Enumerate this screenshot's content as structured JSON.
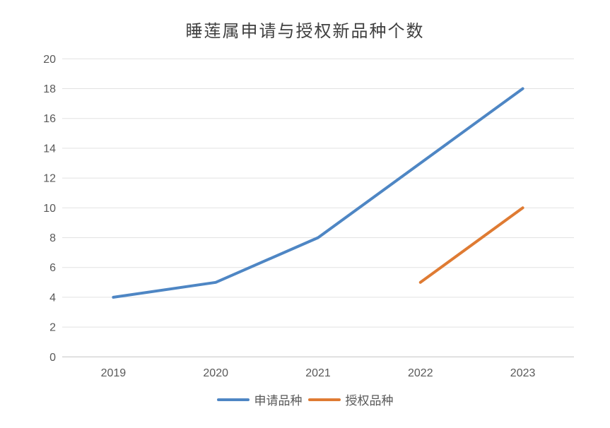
{
  "chart_data": {
    "type": "line",
    "title": "睡莲属申请与授权新品种个数",
    "categories": [
      "2019",
      "2020",
      "2021",
      "2022",
      "2023"
    ],
    "series": [
      {
        "name": "申请品种",
        "color": "#4e86c4",
        "values": [
          4,
          5,
          8,
          13,
          18
        ]
      },
      {
        "name": "授权品种",
        "color": "#df7b33",
        "values": [
          null,
          null,
          null,
          5,
          10
        ]
      }
    ],
    "xlabel": "",
    "ylabel": "",
    "ylim": [
      0,
      20
    ],
    "ytick_step": 2,
    "grid": true,
    "legend_position": "bottom"
  },
  "style": {
    "background_color": "#ffffff",
    "gridline_color": "#e2e2e2",
    "axis_line_color": "#c3c3c3",
    "tick_label_color": "#595959",
    "title_color": "#3f3f3f",
    "line_width": 4
  }
}
